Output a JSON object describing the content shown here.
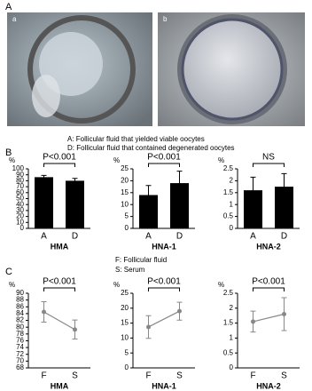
{
  "figure": {
    "panel_labels": [
      "A",
      "B",
      "C"
    ],
    "image_labels": [
      "a",
      "b"
    ],
    "notes_b": [
      "A:  Follicular fluid that yielded viable oocytes",
      "D:  Follicular fluid that contained degenerated oocytes"
    ],
    "notes_c": [
      "F:  Follicular fluid",
      "S:  Serum"
    ]
  },
  "chart_data": [
    {
      "type": "bar",
      "title": "HMA",
      "ylabel": "%",
      "annotation": "P<0.001",
      "categories": [
        "A",
        "D"
      ],
      "values": [
        86,
        80
      ],
      "errors": [
        3,
        4
      ],
      "color": "#000000",
      "ylim": [
        0,
        100
      ],
      "yticks": [
        0,
        10,
        20,
        30,
        40,
        50,
        60,
        70,
        80,
        90,
        100
      ]
    },
    {
      "type": "bar",
      "title": "HNA-1",
      "ylabel": "%",
      "annotation": "P<0.001",
      "categories": [
        "A",
        "D"
      ],
      "values": [
        14,
        19
      ],
      "errors": [
        4,
        5
      ],
      "color": "#000000",
      "ylim": [
        0,
        25
      ],
      "yticks": [
        0,
        5,
        10,
        15,
        20,
        25
      ]
    },
    {
      "type": "bar",
      "title": "HNA-2",
      "ylabel": "%",
      "annotation": "NS",
      "categories": [
        "A",
        "D"
      ],
      "values": [
        1.6,
        1.75
      ],
      "errors": [
        0.55,
        0.55
      ],
      "color": "#000000",
      "ylim": [
        0,
        2.5
      ],
      "yticks": [
        0,
        0.5,
        1,
        1.5,
        2,
        2.5
      ]
    },
    {
      "type": "line",
      "title": "HMA",
      "ylabel": "%",
      "annotation": "P<0.001",
      "categories": [
        "F",
        "S"
      ],
      "values": [
        84.5,
        79.3
      ],
      "errors": [
        3,
        2.8
      ],
      "color": "#888888",
      "ylim": [
        68,
        90
      ],
      "yticks": [
        68,
        70,
        72,
        74,
        76,
        78,
        80,
        82,
        84,
        86,
        88,
        90
      ]
    },
    {
      "type": "line",
      "title": "HNA-1",
      "ylabel": "%",
      "annotation": "P<0.001",
      "categories": [
        "F",
        "S"
      ],
      "values": [
        13.7,
        19
      ],
      "errors": [
        3.8,
        3
      ],
      "color": "#888888",
      "ylim": [
        0,
        25
      ],
      "yticks": [
        0,
        5,
        10,
        15,
        20,
        25
      ]
    },
    {
      "type": "line",
      "title": "HNA-2",
      "ylabel": "%",
      "annotation": "P<0.001",
      "categories": [
        "F",
        "S"
      ],
      "values": [
        1.55,
        1.8
      ],
      "errors": [
        0.35,
        0.55
      ],
      "color": "#888888",
      "ylim": [
        0,
        2.5
      ],
      "yticks": [
        0,
        0.5,
        1,
        1.5,
        2,
        2.5
      ]
    }
  ]
}
